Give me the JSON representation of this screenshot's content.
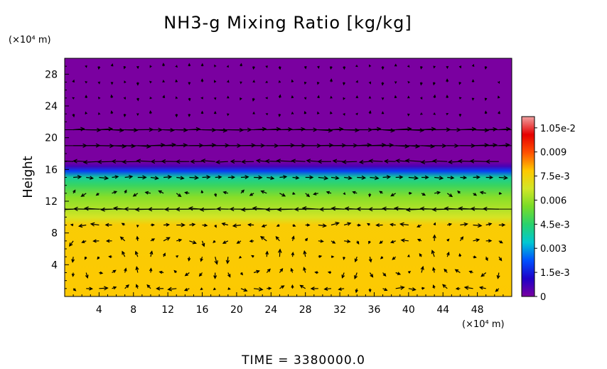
{
  "chart_data": {
    "type": "heatmap",
    "title": "NH3-g Mixing Ratio [kg/kg]",
    "ylabel": "Height",
    "x_unit_label": "(×10⁴ m)",
    "y_unit_label": "(×10⁴ m)",
    "footer": "TIME = 3380000.0",
    "xlim": [
      0,
      52
    ],
    "ylim": [
      0,
      30
    ],
    "x_ticks": [
      4,
      8,
      12,
      16,
      20,
      24,
      28,
      32,
      36,
      40,
      44,
      48
    ],
    "y_ticks": [
      4,
      8,
      12,
      16,
      20,
      24,
      28
    ],
    "x_tick_labels": [
      "4",
      "8",
      "12",
      "16",
      "20",
      "24",
      "28",
      "32",
      "36",
      "40",
      "44",
      "48"
    ],
    "y_tick_labels": [
      "4",
      "8",
      "12",
      "16",
      "20",
      "24",
      "28"
    ],
    "colorbar": {
      "min": 0,
      "max": 0.0112,
      "tick_values": [
        0,
        0.0015,
        0.003,
        0.0045,
        0.006,
        0.0075,
        0.009,
        0.0105
      ],
      "tick_labels": [
        "0",
        "1.5e-3",
        "0.003",
        "4.5e-3",
        "0.006",
        "7.5e-3",
        "0.009",
        "1.05e-2"
      ],
      "colors": [
        "#7a00a0",
        "#1e00c8",
        "#0050ff",
        "#00c8d2",
        "#28d26e",
        "#78dc28",
        "#d2e628",
        "#ffc800",
        "#ff5000",
        "#e60000",
        "#f0a0a0"
      ]
    },
    "field_profile": [
      {
        "height": 0,
        "value": 0.0078
      },
      {
        "height": 9,
        "value": 0.0077
      },
      {
        "height": 10,
        "value": 0.0068
      },
      {
        "height": 11,
        "value": 0.0063
      },
      {
        "height": 12.5,
        "value": 0.0058
      },
      {
        "height": 14,
        "value": 0.0047
      },
      {
        "height": 15,
        "value": 0.004
      },
      {
        "height": 15.8,
        "value": 0.002
      },
      {
        "height": 16.4,
        "value": 0.0006
      },
      {
        "height": 17,
        "value": 0.0
      },
      {
        "height": 30,
        "value": 0.0
      }
    ],
    "wind_layers": [
      {
        "height": 21,
        "u": 1
      },
      {
        "height": 19,
        "u": 1
      },
      {
        "height": 17,
        "u": -1
      },
      {
        "height": 15,
        "u": 0.6
      },
      {
        "height": 11,
        "u": -1
      }
    ]
  }
}
